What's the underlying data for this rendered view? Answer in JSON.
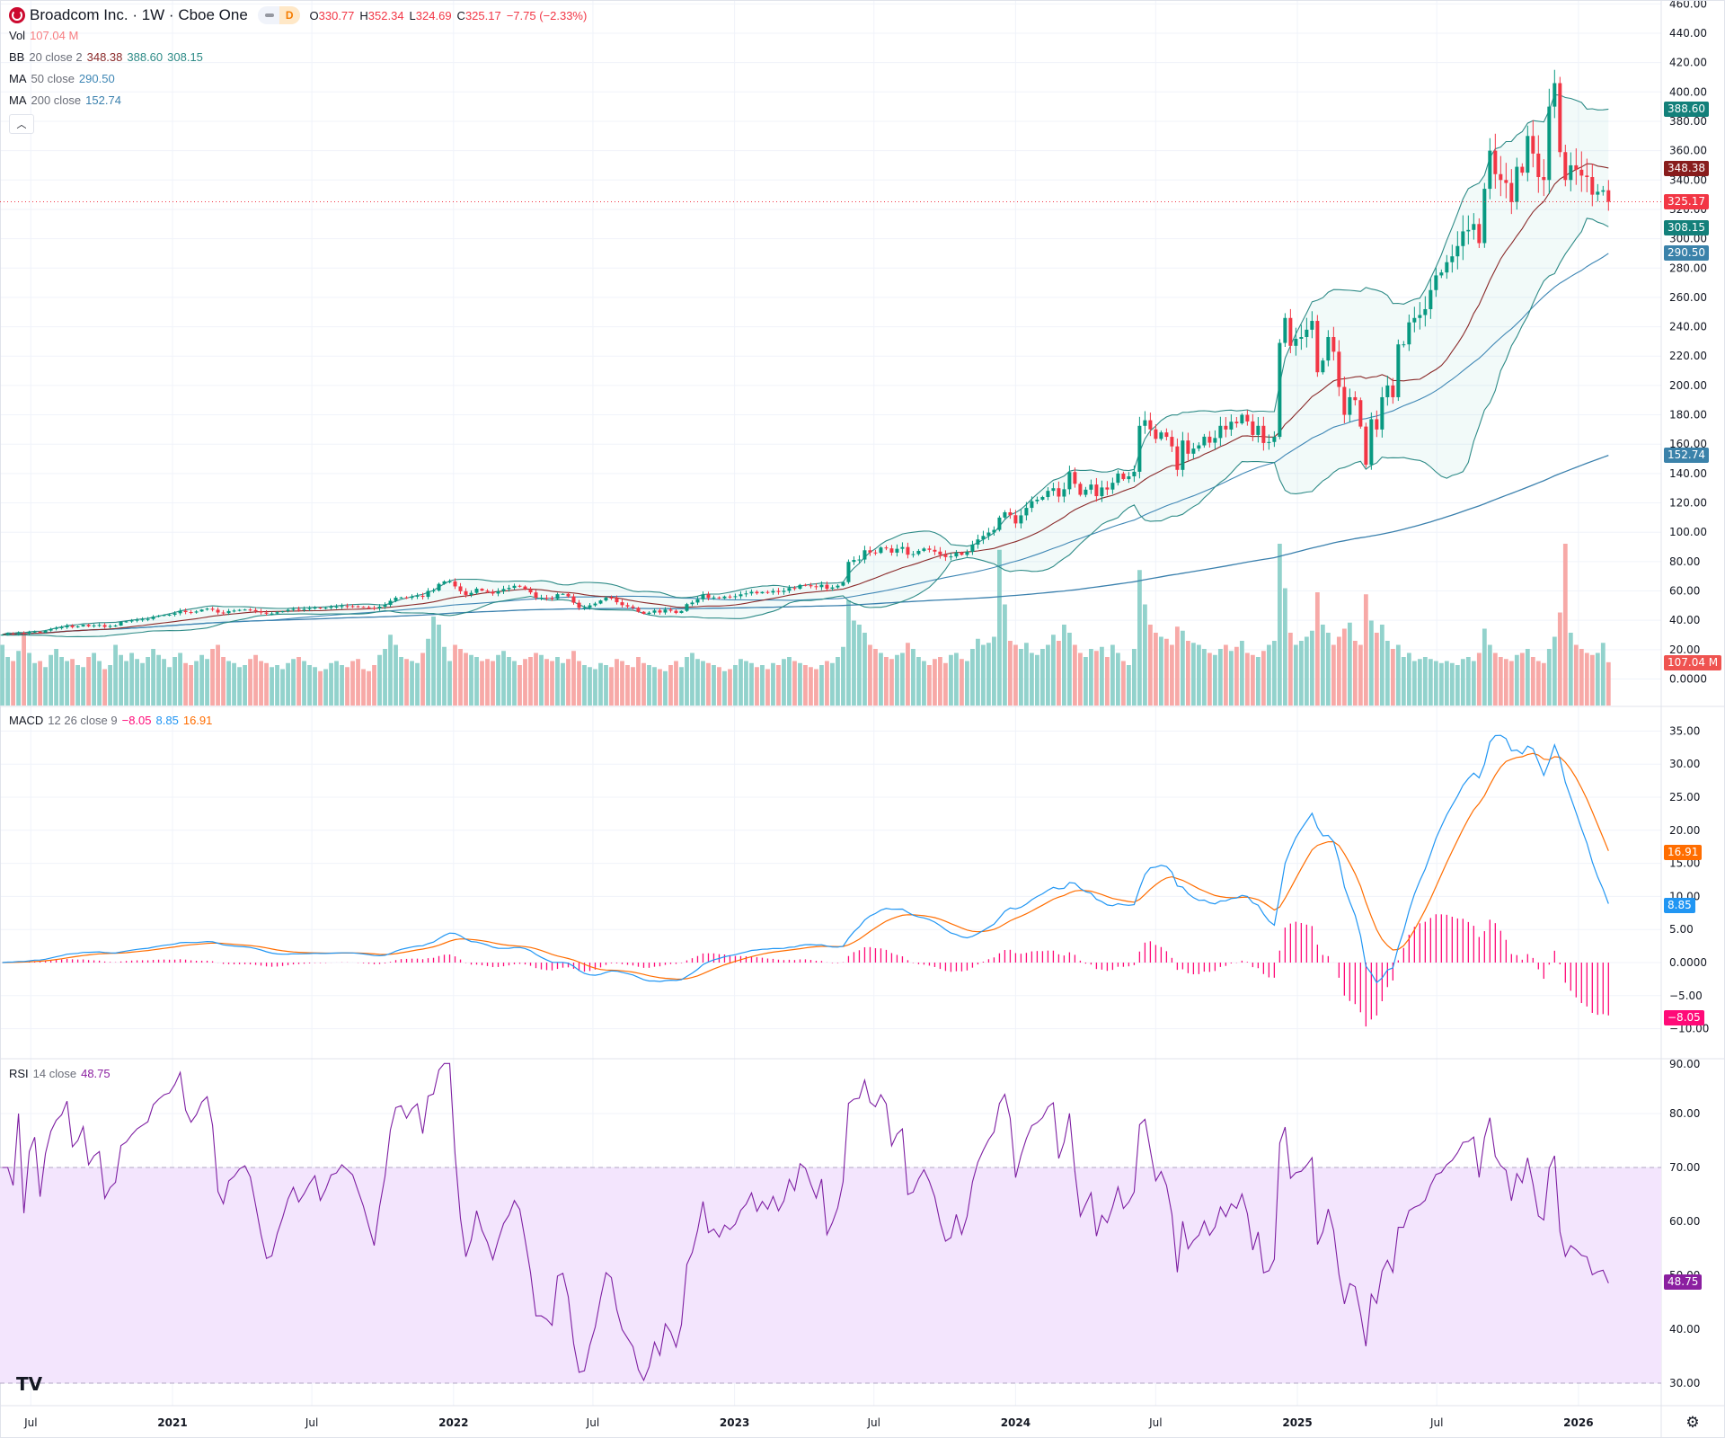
{
  "header": {
    "title": "Broadcom Inc. · 1W · Cboe One",
    "badge": "D",
    "ohlc": {
      "o_label": "O",
      "o": "330.77",
      "h_label": "H",
      "h": "352.34",
      "l_label": "L",
      "l": "324.69",
      "c_label": "C",
      "c": "325.17",
      "change": "−7.75 (−2.33%)"
    }
  },
  "legends": {
    "vol": {
      "label": "Vol",
      "value": "107.04 M"
    },
    "bb": {
      "label": "BB",
      "params": "20 close 2",
      "basis": "348.38",
      "upper": "388.60",
      "lower": "308.15"
    },
    "ma50": {
      "label": "MA",
      "params": "50 close",
      "value": "290.50"
    },
    "ma200": {
      "label": "MA",
      "params": "200 close",
      "value": "152.74"
    },
    "macd": {
      "label": "MACD",
      "params": "12 26 close 9",
      "hist": "−8.05",
      "macd": "8.85",
      "signal": "16.91"
    },
    "rsi": {
      "label": "RSI",
      "params": "14 close",
      "value": "48.75"
    }
  },
  "axis_badges": {
    "bb_upper": {
      "text": "388.60",
      "color": "#13807a"
    },
    "bb_basis": {
      "text": "348.38",
      "color": "#881c1c"
    },
    "last_price": {
      "text": "325.17",
      "color": "#f23645"
    },
    "bb_lower": {
      "text": "308.15",
      "color": "#13807a"
    },
    "ma50": {
      "text": "290.50",
      "color": "#3b82aa"
    },
    "ma200": {
      "text": "152.74",
      "color": "#3b82aa"
    },
    "volume": {
      "text": "107.04 M",
      "color": "#ef5350"
    },
    "signal": {
      "text": "16.91",
      "color": "#ff6d00"
    },
    "macd": {
      "text": "8.85",
      "color": "#2196f3"
    },
    "hist": {
      "text": "−8.05",
      "color": "#ff0a78"
    },
    "rsi": {
      "text": "48.75",
      "color": "#8b1fa0"
    }
  },
  "colors": {
    "up": "#089981",
    "down": "#f23645",
    "vol_up": "#92d2cc",
    "vol_down": "#f7a9a7",
    "bb_line": "#2e8b87",
    "bb_basis": "#8a2a2a",
    "ma50": "#3f87b5",
    "ma200": "#3a80ad",
    "macd": "#2196f3",
    "signal": "#ff6d00",
    "hist": "#ff0a78",
    "rsi": "#7e1fa2",
    "rsi_band": "#f3e5fd"
  },
  "chart_data": {
    "type": "candlestick",
    "interval": "1W",
    "first_week": "2020-05-25",
    "last_close": 325.17,
    "price_ticks": [
      "0.0000",
      "20.00",
      "40.00",
      "60.00",
      "80.00",
      "100.00",
      "120.00",
      "140.00",
      "160.00",
      "180.00",
      "200.00",
      "220.00",
      "240.00",
      "260.00",
      "280.00",
      "300.00",
      "320.00",
      "340.00",
      "360.00",
      "380.00",
      "400.00",
      "420.00",
      "440.00",
      "460.00"
    ],
    "macd_ticks": [
      "−10.00",
      "−5.00",
      "0.0000",
      "5.00",
      "10.00",
      "15.00",
      "20.00",
      "25.00",
      "30.00",
      "35.00"
    ],
    "rsi_ticks": [
      "30.00",
      "40.00",
      "50.00",
      "60.00",
      "70.00",
      "80.00",
      "90.00"
    ],
    "rsi_band": [
      30,
      70
    ],
    "x_ticks": [
      {
        "label": "Jul",
        "date": "2020-07-01"
      },
      {
        "label": "2021",
        "date": "2021-01-01"
      },
      {
        "label": "Jul",
        "date": "2021-07-01"
      },
      {
        "label": "2022",
        "date": "2022-01-01"
      },
      {
        "label": "Jul",
        "date": "2022-07-01"
      },
      {
        "label": "2023",
        "date": "2023-01-01"
      },
      {
        "label": "Jul",
        "date": "2023-07-01"
      },
      {
        "label": "2024",
        "date": "2024-01-01"
      },
      {
        "label": "Jul",
        "date": "2024-07-01"
      },
      {
        "label": "2025",
        "date": "2025-01-01"
      },
      {
        "label": "Jul",
        "date": "2025-07-01"
      },
      {
        "label": "2026",
        "date": "2026-01-01"
      }
    ],
    "close": [
      30.2,
      31.0,
      30.6,
      31.4,
      30.8,
      31.9,
      32.3,
      31.6,
      33.0,
      34.1,
      34.8,
      35.2,
      36.4,
      35.3,
      35.8,
      36.9,
      35.9,
      36.5,
      36.8,
      35.5,
      36.1,
      36.4,
      38.9,
      39.2,
      39.8,
      40.3,
      40.6,
      40.9,
      42.5,
      43.1,
      43.6,
      43.8,
      44.8,
      46.5,
      45.6,
      45.3,
      46.0,
      47.3,
      47.9,
      47.2,
      45.3,
      44.9,
      46.3,
      46.6,
      47.1,
      47.3,
      47.0,
      46.2,
      45.3,
      44.5,
      44.6,
      45.5,
      46.2,
      47.1,
      47.7,
      47.3,
      47.7,
      48.2,
      48.6,
      48.0,
      48.5,
      49.2,
      49.3,
      49.7,
      49.6,
      49.5,
      49.2,
      48.9,
      48.5,
      48.1,
      49.3,
      50.5,
      53.3,
      55.4,
      55.6,
      55.3,
      56.2,
      56.7,
      56.0,
      60.0,
      60.3,
      64.8,
      66.5,
      66.5,
      63.1,
      59.8,
      57.3,
      58.7,
      61.5,
      60.2,
      59.4,
      58.2,
      59.8,
      61.3,
      62.1,
      63.5,
      63.0,
      61.2,
      59.0,
      55.4,
      55.4,
      55.1,
      54.6,
      57.8,
      58.0,
      56.3,
      52.0,
      48.5,
      48.6,
      50.2,
      51.4,
      53.5,
      55.5,
      55.1,
      52.3,
      50.3,
      49.4,
      48.5,
      45.8,
      44.4,
      45.2,
      46.7,
      45.3,
      47.3,
      46.5,
      45.0,
      46.4,
      51.0,
      52.1,
      54.3,
      57.6,
      55.2,
      55.6,
      55.0,
      56.2,
      55.9,
      56.4,
      57.7,
      58.3,
      59.4,
      58.4,
      59.3,
      58.9,
      60.0,
      59.3,
      60.1,
      62.0,
      61.5,
      64.1,
      63.9,
      63.2,
      62.6,
      64.2,
      61.5,
      62.4,
      63.6,
      66.0,
      79.8,
      81.1,
      81.4,
      87.7,
      86.2,
      85.9,
      89.6,
      89.0,
      86.1,
      88.7,
      89.9,
      84.7,
      85.1,
      87.3,
      88.9,
      88.0,
      86.8,
      84.7,
      83.1,
      83.5,
      86.2,
      84.6,
      86.7,
      91.6,
      95.1,
      97.5,
      99.8,
      101.6,
      110.0,
      113.6,
      111.6,
      106.0,
      111.5,
      116.6,
      121.1,
      122.2,
      124.0,
      128.2,
      130.0,
      124.3,
      129.3,
      141.0,
      133.0,
      125.5,
      129.0,
      132.5,
      124.6,
      130.5,
      129.1,
      133.7,
      140.0,
      136.2,
      138.1,
      141.2,
      172.5,
      176.3,
      170.1,
      163.6,
      168.0,
      165.0,
      158.5,
      142.5,
      162.5,
      153.5,
      157.0,
      159.2,
      165.1,
      161.0,
      164.2,
      172.5,
      170.0,
      175.3,
      174.2,
      180.0,
      175.5,
      166.3,
      172.5,
      160.8,
      161.5,
      165.0,
      229.0,
      246.0,
      227.0,
      231.8,
      233,
      238,
      244,
      209,
      217,
      233,
      223,
      199,
      180,
      192,
      190,
      172,
      146,
      177,
      170,
      192,
      200,
      192,
      228,
      228,
      243,
      246,
      248,
      252,
      265,
      275,
      277,
      284,
      288,
      295,
      305,
      306,
      310,
      297,
      334,
      360,
      344,
      340,
      338,
      325,
      349,
      345,
      370,
      358,
      342,
      340,
      390,
      406,
      359,
      340,
      350,
      347,
      343,
      342,
      330,
      332,
      333,
      325.17
    ],
    "volume_unit": "M",
    "volume": [
      150,
      120,
      110,
      135,
      180,
      130,
      105,
      110,
      95,
      125,
      140,
      120,
      110,
      115,
      100,
      95,
      120,
      130,
      110,
      90,
      100,
      150,
      125,
      110,
      130,
      115,
      105,
      120,
      140,
      125,
      115,
      95,
      120,
      130,
      105,
      100,
      110,
      125,
      115,
      140,
      150,
      120,
      110,
      105,
      95,
      100,
      115,
      125,
      110,
      105,
      95,
      100,
      90,
      105,
      115,
      120,
      110,
      100,
      95,
      85,
      90,
      105,
      110,
      100,
      95,
      110,
      115,
      90,
      85,
      100,
      125,
      140,
      175,
      150,
      120,
      115,
      110,
      105,
      130,
      165,
      220,
      200,
      145,
      110,
      150,
      140,
      130,
      125,
      120,
      110,
      115,
      110,
      125,
      135,
      120,
      110,
      100,
      115,
      120,
      130,
      125,
      115,
      110,
      120,
      105,
      115,
      135,
      110,
      100,
      95,
      90,
      105,
      100,
      95,
      115,
      110,
      100,
      95,
      120,
      105,
      100,
      95,
      90,
      85,
      100,
      110,
      95,
      120,
      130,
      115,
      110,
      105,
      100,
      95,
      85,
      90,
      100,
      115,
      110,
      105,
      95,
      100,
      90,
      105,
      100,
      115,
      120,
      110,
      105,
      100,
      95,
      90,
      100,
      110,
      105,
      120,
      145,
      260,
      210,
      200,
      180,
      150,
      140,
      130,
      120,
      115,
      125,
      130,
      155,
      140,
      120,
      110,
      100,
      115,
      120,
      105,
      125,
      130,
      115,
      110,
      140,
      165,
      150,
      155,
      170,
      385,
      250,
      160,
      150,
      140,
      155,
      130,
      125,
      140,
      150,
      175,
      160,
      200,
      180,
      150,
      130,
      120,
      140,
      135,
      145,
      120,
      150,
      130,
      110,
      100,
      140,
      335,
      250,
      200,
      180,
      170,
      165,
      150,
      195,
      185,
      160,
      155,
      150,
      140,
      130,
      125,
      140,
      150,
      135,
      145,
      160,
      130,
      125,
      120,
      135,
      150,
      160,
      400,
      290,
      180,
      150,
      160,
      170,
      185,
      280,
      200,
      180,
      150,
      170,
      190,
      205,
      160,
      150,
      275,
      210,
      180,
      200,
      160,
      140,
      150,
      120,
      130,
      110,
      115,
      120,
      115,
      110,
      105,
      110,
      105,
      100,
      115,
      120,
      110,
      130,
      190,
      150,
      130,
      120,
      115,
      110,
      125,
      130,
      140,
      120,
      110,
      105,
      140,
      170,
      230,
      400,
      180,
      150,
      140,
      130,
      125,
      130,
      155,
      107.04
    ],
    "indicators": {
      "bb": {
        "period": 20,
        "mult": 2
      },
      "ma": [
        50,
        200
      ],
      "macd": {
        "fast": 12,
        "slow": 26,
        "signal": 9
      },
      "rsi": {
        "period": 14
      }
    }
  }
}
